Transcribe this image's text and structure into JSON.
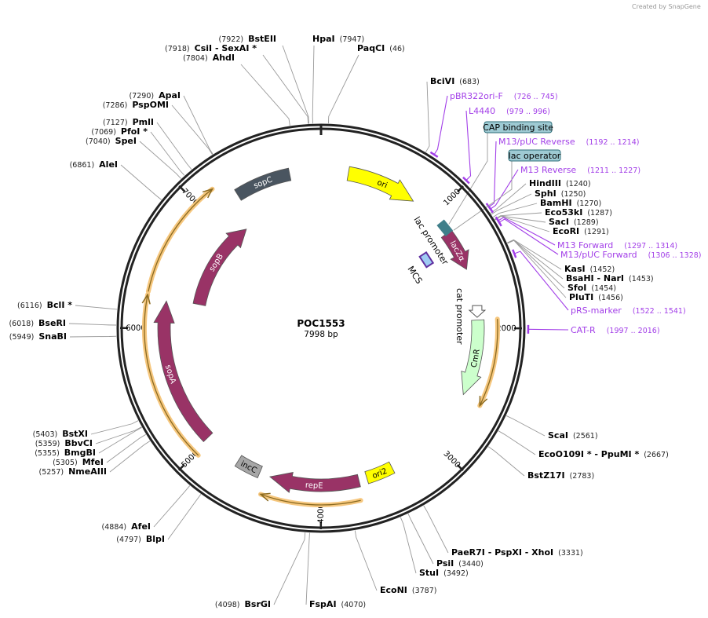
{
  "watermark": "Created by SnapGene",
  "plasmid": {
    "name": "POC1553",
    "length_label": "7998 bp",
    "length": 7998
  },
  "ticks": [
    {
      "label": "1000",
      "bp": 1000
    },
    {
      "label": "2000",
      "bp": 2000
    },
    {
      "label": "3000",
      "bp": 3000
    },
    {
      "label": "4000",
      "bp": 4000
    },
    {
      "label": "5000",
      "bp": 5000
    },
    {
      "label": "6000",
      "bp": 6000
    },
    {
      "label": "7000",
      "bp": 7000
    }
  ],
  "enzymes": [
    {
      "name": "BstEII",
      "pos": "(7922)",
      "bp": 7922
    },
    {
      "name": "CsiI  - SexAI *",
      "pos": "(7918)",
      "bp": 7918
    },
    {
      "name": "AhdI",
      "pos": "(7804)",
      "bp": 7804
    },
    {
      "name": "HpaI",
      "pos": "(7947)",
      "bp": 7947
    },
    {
      "name": "PaqCI",
      "pos": "(46)",
      "bp": 46
    },
    {
      "name": "ApaI",
      "pos": "(7290)",
      "bp": 7290
    },
    {
      "name": "PspOMI",
      "pos": "(7286)",
      "bp": 7286
    },
    {
      "name": "PmlI",
      "pos": "(7127)",
      "bp": 7127
    },
    {
      "name": "PfoI *",
      "pos": "(7069)",
      "bp": 7069
    },
    {
      "name": "SpeI",
      "pos": "(7040)",
      "bp": 7040
    },
    {
      "name": "AleI",
      "pos": "(6861)",
      "bp": 6861
    },
    {
      "name": "BclI *",
      "pos": "(6116)",
      "bp": 6116
    },
    {
      "name": "BseRI",
      "pos": "(6018)",
      "bp": 6018
    },
    {
      "name": "SnaBI",
      "pos": "(5949)",
      "bp": 5949
    },
    {
      "name": "BstXI",
      "pos": "(5403)",
      "bp": 5403
    },
    {
      "name": "BbvCI",
      "pos": "(5359)",
      "bp": 5359
    },
    {
      "name": "BmgBI",
      "pos": "(5355)",
      "bp": 5355
    },
    {
      "name": "MfeI",
      "pos": "(5305)",
      "bp": 5305
    },
    {
      "name": "NmeAIII",
      "pos": "(5257)",
      "bp": 5257
    },
    {
      "name": "AfeI",
      "pos": "(4884)",
      "bp": 4884
    },
    {
      "name": "BlpI",
      "pos": "(4797)",
      "bp": 4797
    },
    {
      "name": "BsrGI",
      "pos": "(4098)",
      "bp": 4098
    },
    {
      "name": "FspAI",
      "pos": "(4070)",
      "bp": 4070
    },
    {
      "name": "EcoNI",
      "pos": "(3787)",
      "bp": 3787
    },
    {
      "name": "StuI",
      "pos": "(3492)",
      "bp": 3492
    },
    {
      "name": "PsiI",
      "pos": "(3440)",
      "bp": 3440
    },
    {
      "name": "PaeR7I  - PspXI  - XhoI",
      "pos": "(3331)",
      "bp": 3331
    },
    {
      "name": "BstZ17I",
      "pos": "(2783)",
      "bp": 2783
    },
    {
      "name": "EcoO109I *  - PpuMI *",
      "pos": "(2667)",
      "bp": 2667
    },
    {
      "name": "ScaI",
      "pos": "(2561)",
      "bp": 2561
    },
    {
      "name": "BciVI",
      "pos": "(683)",
      "bp": 683
    },
    {
      "name": "HindIII",
      "pos": "(1240)",
      "bp": 1240
    },
    {
      "name": "SphI",
      "pos": "(1250)",
      "bp": 1250
    },
    {
      "name": "BamHI",
      "pos": "(1270)",
      "bp": 1270
    },
    {
      "name": "Eco53kI",
      "pos": "(1287)",
      "bp": 1287
    },
    {
      "name": "SacI",
      "pos": "(1289)",
      "bp": 1289
    },
    {
      "name": "EcoRI",
      "pos": "(1291)",
      "bp": 1291
    },
    {
      "name": "KasI",
      "pos": "(1452)",
      "bp": 1452
    },
    {
      "name": "BsaHI  - NarI",
      "pos": "(1453)",
      "bp": 1453
    },
    {
      "name": "SfoI",
      "pos": "(1454)",
      "bp": 1454
    },
    {
      "name": "PluTI",
      "pos": "(1456)",
      "bp": 1456
    }
  ],
  "primers": [
    {
      "name": "pBR322ori-F",
      "range": "(726 .. 745)",
      "bp": 735
    },
    {
      "name": "L4440",
      "range": "(979 .. 996)",
      "bp": 988
    },
    {
      "name": "M13/pUC Reverse",
      "range": "(1192 .. 1214)",
      "bp": 1203
    },
    {
      "name": "M13 Reverse",
      "range": "(1211 .. 1227)",
      "bp": 1219
    },
    {
      "name": "M13 Forward",
      "range": "(1297 .. 1314)",
      "bp": 1305
    },
    {
      "name": "M13/pUC Forward",
      "range": "(1306 .. 1328)",
      "bp": 1317
    },
    {
      "name": "pRS-marker",
      "range": "(1522 .. 1541)",
      "bp": 1531
    },
    {
      "name": "CAT-R",
      "range": "(1997 .. 2016)",
      "bp": 2006
    }
  ],
  "boxed_features": [
    {
      "name": "CAP binding site",
      "bp": 1130
    },
    {
      "name": "lac operator",
      "bp": 1190
    }
  ],
  "features": [
    {
      "name": "ori",
      "color": "#ffff00",
      "text_color": "#000000"
    },
    {
      "name": "lacZα",
      "color": "#993366",
      "text_color": "#ffffff"
    },
    {
      "name": "CmR",
      "color": "#ccffcc",
      "text_color": "#000000"
    },
    {
      "name": "ori2",
      "color": "#ffff00",
      "text_color": "#000000"
    },
    {
      "name": "repE",
      "color": "#993366",
      "text_color": "#ffffff"
    },
    {
      "name": "incC",
      "color": "#a6a6a6",
      "text_color": "#000000"
    },
    {
      "name": "sopA",
      "color": "#993366",
      "text_color": "#ffffff"
    },
    {
      "name": "sopB",
      "color": "#993366",
      "text_color": "#ffffff"
    },
    {
      "name": "sopC",
      "color": "#4a5560",
      "text_color": "#ffffff"
    }
  ],
  "annotations": {
    "lac_promoter": "lac promoter",
    "mcs": "MCS",
    "cat_promoter": "cat promoter"
  },
  "colors": {
    "primer": "#a23ee8",
    "backbone": "#222222",
    "misc_orange": "#f6c77e",
    "box_fill": "#9ecad3"
  }
}
